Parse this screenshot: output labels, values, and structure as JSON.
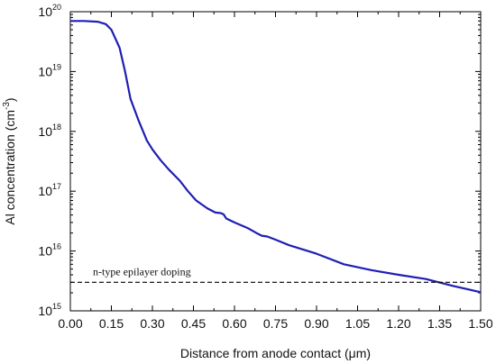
{
  "chart_data": {
    "type": "line",
    "xlabel": "Distance from anode contact (μm)",
    "ylabel": "Al concentration (cm⁻³)",
    "ylabel_main": "Al concentration (cm",
    "ylabel_sup": "-3",
    "ylabel_close": ")",
    "xlim": [
      0.0,
      1.5
    ],
    "ylim": [
      1000000000000000.0,
      1e+20
    ],
    "yscale": "log",
    "grid": false,
    "x_ticks": [
      "0.00",
      "0.15",
      "0.30",
      "0.45",
      "0.60",
      "0.75",
      "0.90",
      "1.05",
      "1.20",
      "1.35",
      "1.50"
    ],
    "y_ticks": [
      {
        "base": "10",
        "exp": "15"
      },
      {
        "base": "10",
        "exp": "16"
      },
      {
        "base": "10",
        "exp": "17"
      },
      {
        "base": "10",
        "exp": "18"
      },
      {
        "base": "10",
        "exp": "19"
      },
      {
        "base": "10",
        "exp": "20"
      }
    ],
    "series": [
      {
        "color": "#1f1fb4",
        "x": [
          0.0,
          0.05,
          0.1,
          0.13,
          0.15,
          0.18,
          0.2,
          0.22,
          0.25,
          0.28,
          0.3,
          0.33,
          0.36,
          0.4,
          0.43,
          0.46,
          0.5,
          0.53,
          0.55,
          0.56,
          0.57,
          0.6,
          0.65,
          0.68,
          0.7,
          0.72,
          0.75,
          0.8,
          0.9,
          1.0,
          1.1,
          1.2,
          1.3,
          1.4,
          1.5
        ],
        "y": [
          7e+19,
          7e+19,
          6.8e+19,
          6.2e+19,
          5e+19,
          2.5e+19,
          1e+19,
          3.5e+18,
          1.5e+18,
          7e+17,
          5e+17,
          3.3e+17,
          2.3e+17,
          1.5e+17,
          1e+17,
          7e+16,
          5.2e+16,
          4.4e+16,
          4.3e+16,
          4.1e+16,
          3.5e+16,
          3e+16,
          2.4e+16,
          2e+16,
          1.8e+16,
          1.75e+16,
          1.55e+16,
          1.25e+16,
          9000000000000000.0,
          6000000000000000.0,
          4800000000000000.0,
          4000000000000000.0,
          3400000000000000.0,
          2600000000000000.0,
          2050000000000000.0
        ]
      }
    ],
    "reference_line": {
      "y": 3000000000000000.0,
      "style": "dashed",
      "color": "#000000",
      "label": "n-type epilayer doping"
    }
  }
}
